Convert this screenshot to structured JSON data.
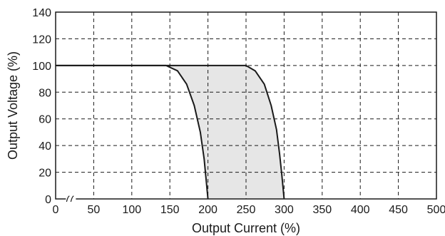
{
  "chart_data": {
    "type": "line",
    "title": "",
    "xlabel": "Output Current (%)",
    "ylabel": "Output Voltage (%)",
    "xlim": [
      0,
      500
    ],
    "ylim": [
      0,
      140
    ],
    "x_ticks": [
      0,
      50,
      100,
      150,
      200,
      250,
      300,
      350,
      400,
      450,
      500
    ],
    "y_ticks": [
      0,
      20,
      40,
      60,
      80,
      100,
      120,
      140
    ],
    "x_tick_labels": [
      "0",
      "50",
      "100",
      "150",
      "200",
      "250",
      "300",
      "350",
      "400",
      "450",
      "500"
    ],
    "y_tick_labels": [
      "0",
      "20",
      "40",
      "60",
      "80",
      "100",
      "120",
      "140"
    ],
    "grid": true,
    "grid_style": "dashed",
    "axis_break": "≈",
    "axis_break_at_x": 20,
    "shaded_band_color": "#e6e6e6",
    "line_color": "#1a1a1a",
    "series": [
      {
        "x": [
          0,
          145,
          160,
          172,
          182,
          190,
          195,
          198,
          200
        ],
        "y": [
          100,
          100,
          96,
          86,
          70,
          50,
          30,
          12,
          0
        ]
      },
      {
        "x": [
          0,
          250,
          262,
          274,
          283,
          290,
          294,
          297,
          299,
          300
        ],
        "y": [
          100,
          100,
          96,
          86,
          70,
          52,
          34,
          18,
          6,
          0
        ]
      }
    ]
  }
}
